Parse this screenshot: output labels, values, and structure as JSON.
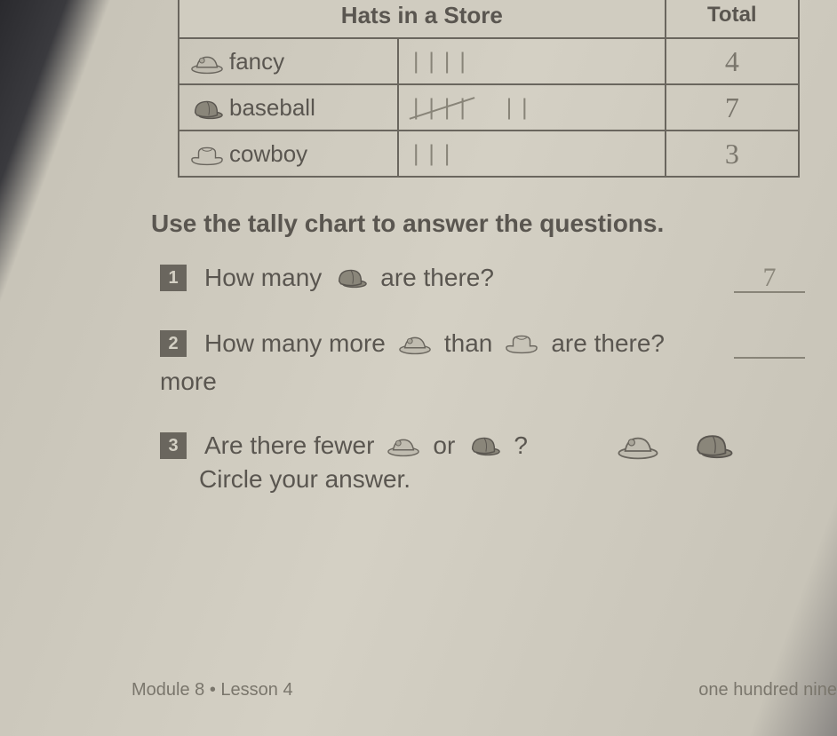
{
  "table": {
    "title": "Hats in a Store",
    "total_header": "Total",
    "rows": [
      {
        "icon": "fancy",
        "name": "fancy",
        "tally": "||||",
        "tally_cross": false,
        "total": "4"
      },
      {
        "icon": "baseball",
        "name": "baseball",
        "tally": "||||  ||",
        "tally_cross": true,
        "total": "7"
      },
      {
        "icon": "cowboy",
        "name": "cowboy",
        "tally": "|||",
        "tally_cross": false,
        "total": "3"
      }
    ]
  },
  "instruction": "Use the tally chart to answer the questions.",
  "questions": {
    "q1": {
      "num": "1",
      "pre": "How many",
      "icon": "baseball",
      "post": "are there?",
      "answer": "7"
    },
    "q2": {
      "num": "2",
      "pre": "How many more",
      "icon1": "fancy",
      "mid": "than",
      "icon2": "cowboy",
      "post": "are there?",
      "answer": "",
      "suffix": "more"
    },
    "q3": {
      "num": "3",
      "pre": "Are there fewer",
      "icon1": "fancy",
      "mid": "or",
      "icon2": "baseball",
      "post": "?",
      "sub": "Circle your answer.",
      "choice1": "fancy",
      "choice2": "baseball"
    }
  },
  "footer": {
    "left": "Module 8 • Lesson 4",
    "right": "one hundred nine"
  },
  "colors": {
    "page_bg": "#d4d0c4",
    "text": "#5a5650",
    "border": "#6a665e",
    "pencil": "#8a867a",
    "tally": "#888478"
  },
  "icons": {
    "fancy": {
      "fill": "#c0bcb0",
      "stroke": "#6a665e"
    },
    "baseball": {
      "fill": "#8a867a",
      "stroke": "#5a5650"
    },
    "cowboy": {
      "fill": "#c8c4b8",
      "stroke": "#6a665e"
    }
  }
}
